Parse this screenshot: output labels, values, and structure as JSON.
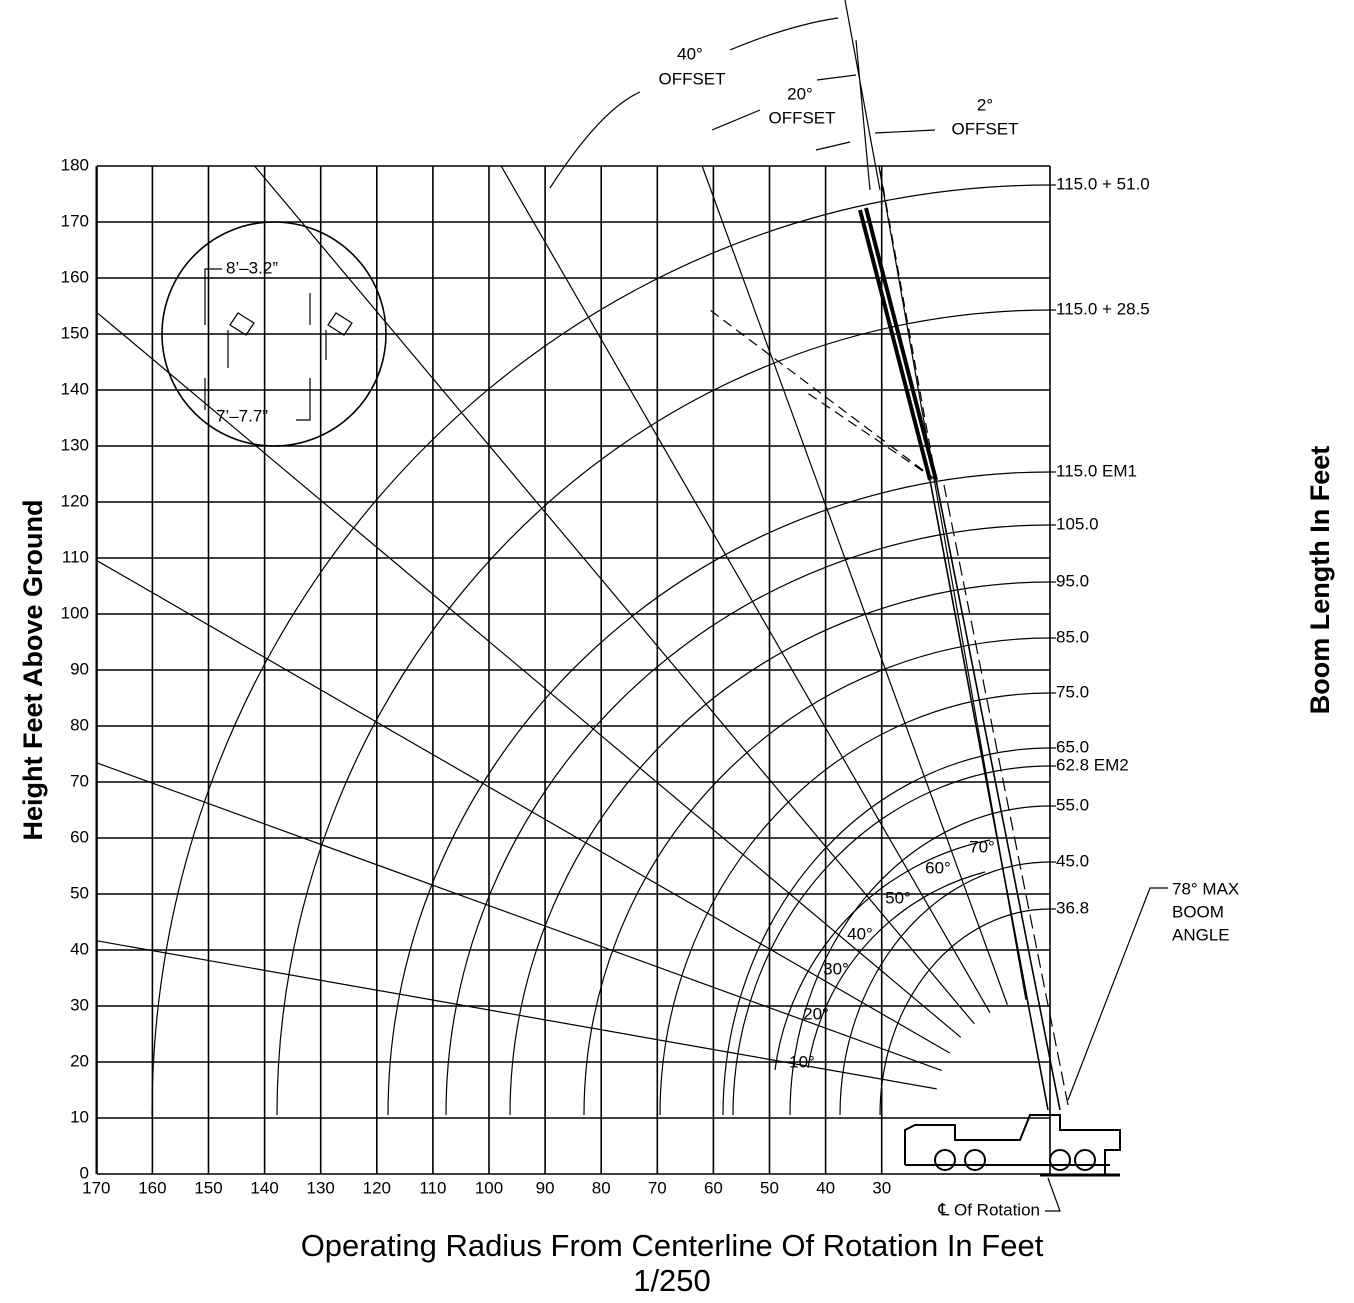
{
  "axes": {
    "y_title": "Height Feet Above Ground",
    "x_title": "Operating Radius From Centerline Of Rotation In Feet",
    "scale": "1/250",
    "right_title": "Boom Length In Feet",
    "xticks": [
      170,
      160,
      150,
      140,
      130,
      120,
      110,
      100,
      90,
      80,
      70,
      60,
      50,
      40,
      30
    ],
    "yticks": [
      0,
      10,
      20,
      30,
      40,
      50,
      60,
      70,
      80,
      90,
      100,
      110,
      120,
      130,
      140,
      150,
      160,
      170,
      180
    ]
  },
  "boom_lengths": [
    "115.0 + 51.0",
    "115.0 + 28.5",
    "115.0 EM1",
    "105.0",
    "95.0",
    "85.0",
    "75.0",
    "65.0",
    "62.8 EM2",
    "55.0",
    "45.0",
    "36.8"
  ],
  "boom_angles": [
    "10°",
    "20°",
    "30°",
    "40°",
    "50°",
    "60°",
    "70°"
  ],
  "offsets": [
    {
      "angle": "40°",
      "label": "OFFSET"
    },
    {
      "angle": "20°",
      "label": "OFFSET"
    },
    {
      "angle": "2°",
      "label": "OFFSET"
    }
  ],
  "max_angle": [
    "78°  MAX",
    "BOOM",
    "ANGLE"
  ],
  "rotation_label": "℄ Of Rotation",
  "inset": {
    "top": "8’–3.2”",
    "bottom": "7’–7.7”"
  }
}
